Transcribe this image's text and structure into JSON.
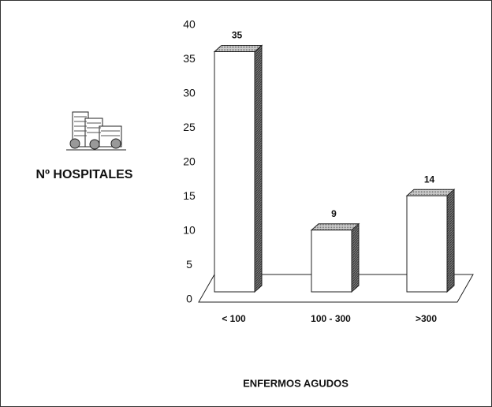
{
  "chart_data": {
    "type": "bar3d",
    "y_label": "Nº HOSPITALES",
    "x_label": "ENFERMOS AGUDOS",
    "categories": [
      "< 100",
      "100 - 300",
      ">300"
    ],
    "values": [
      35,
      9,
      14
    ],
    "color": "#ffffff",
    "ylim": [
      0,
      40
    ],
    "yticks": [
      0,
      5,
      10,
      15,
      20,
      25,
      30,
      35,
      40
    ],
    "grid": false
  }
}
